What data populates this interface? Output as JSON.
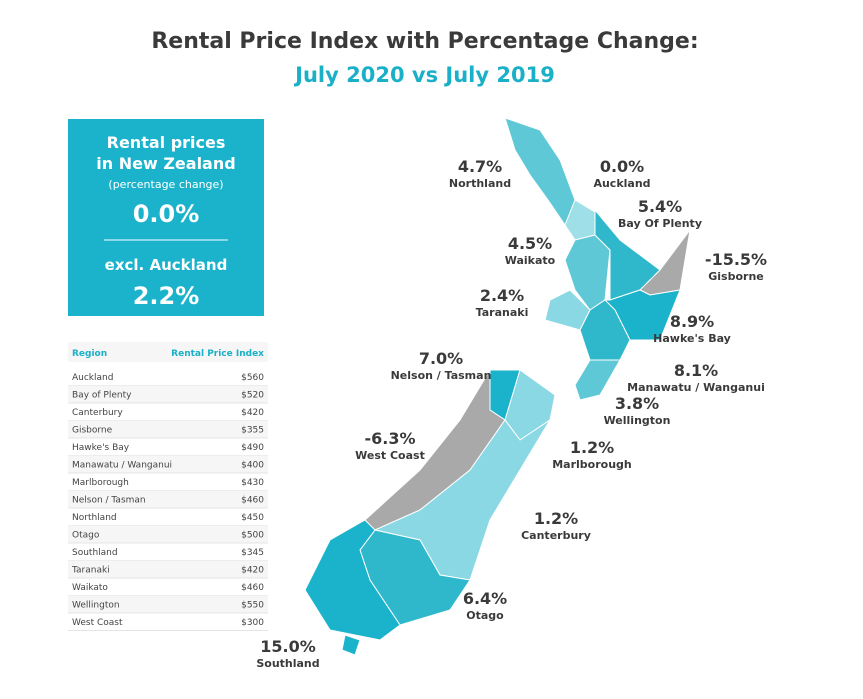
{
  "title": "Rental Price Index with Percentage Change:",
  "subtitle": "July 2020 vs July 2019",
  "summary": {
    "heading": [
      "Rental prices",
      "in New Zealand"
    ],
    "note": "(percentage change)",
    "value": "0.0%",
    "excl_label": "excl. Auckland",
    "excl_value": "2.2%"
  },
  "table": {
    "columns": [
      "Region",
      "Rental Price Index"
    ],
    "rows": [
      [
        "Auckland",
        "$560"
      ],
      [
        "Bay of Plenty",
        "$520"
      ],
      [
        "Canterbury",
        "$420"
      ],
      [
        "Gisborne",
        "$355"
      ],
      [
        "Hawke's Bay",
        "$490"
      ],
      [
        "Manawatu / Wanganui",
        "$400"
      ],
      [
        "Marlborough",
        "$430"
      ],
      [
        "Nelson / Tasman",
        "$460"
      ],
      [
        "Northland",
        "$450"
      ],
      [
        "Otago",
        "$500"
      ],
      [
        "Southland",
        "$345"
      ],
      [
        "Taranaki",
        "$420"
      ],
      [
        "Waikato",
        "$460"
      ],
      [
        "Wellington",
        "$550"
      ],
      [
        "West Coast",
        "$300"
      ]
    ]
  },
  "map": {
    "regions": [
      {
        "name": "Northland",
        "change": "4.7%"
      },
      {
        "name": "Auckland",
        "change": "0.0%"
      },
      {
        "name": "Bay Of Plenty",
        "change": "5.4%"
      },
      {
        "name": "Waikato",
        "change": "4.5%"
      },
      {
        "name": "Gisborne",
        "change": "-15.5%"
      },
      {
        "name": "Taranaki",
        "change": "2.4%"
      },
      {
        "name": "Hawke's Bay",
        "change": "8.9%"
      },
      {
        "name": "Nelson / Tasman",
        "change": "7.0%"
      },
      {
        "name": "Manawatu / Wanganui",
        "change": "8.1%"
      },
      {
        "name": "Wellington",
        "change": "3.8%"
      },
      {
        "name": "West Coast",
        "change": "-6.3%"
      },
      {
        "name": "Marlborough",
        "change": "1.2%"
      },
      {
        "name": "Canterbury",
        "change": "1.2%"
      },
      {
        "name": "Otago",
        "change": "6.4%"
      },
      {
        "name": "Southland",
        "change": "15.0%"
      }
    ]
  }
}
